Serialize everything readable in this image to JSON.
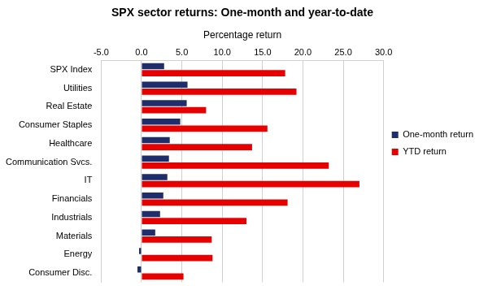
{
  "chart_data": {
    "type": "bar",
    "orientation": "horizontal",
    "title": "SPX sector returns: One-month and year-to-date",
    "x_label": "Percentage return",
    "categories": [
      "SPX Index",
      "Utilities",
      "Real Estate",
      "Consumer Staples",
      "Healthcare",
      "Communication Svcs.",
      "IT",
      "Financials",
      "Industrials",
      "Materials",
      "Energy",
      "Consumer Disc."
    ],
    "series": [
      {
        "name": "One-month return",
        "color": "#1f2d6b",
        "values": [
          2.8,
          5.7,
          5.6,
          4.8,
          3.5,
          3.4,
          3.2,
          2.7,
          2.3,
          1.7,
          -0.3,
          -0.5
        ]
      },
      {
        "name": "YTD return",
        "color": "#e60000",
        "values": [
          17.8,
          19.2,
          8.0,
          15.6,
          13.7,
          23.2,
          27.0,
          18.1,
          13.0,
          8.7,
          8.8,
          5.2
        ]
      }
    ],
    "xlim": [
      -5,
      30
    ],
    "xticks": [
      {
        "value": -5,
        "label": "-5.0"
      },
      {
        "value": 0,
        "label": "0.0"
      },
      {
        "value": 5,
        "label": "5.0"
      },
      {
        "value": 10,
        "label": "10.0"
      },
      {
        "value": 15,
        "label": "15.0"
      },
      {
        "value": 20,
        "label": "20.0"
      },
      {
        "value": 25,
        "label": "25.0"
      },
      {
        "value": 30,
        "label": "30.0"
      }
    ],
    "grid": true,
    "legend": "right"
  }
}
